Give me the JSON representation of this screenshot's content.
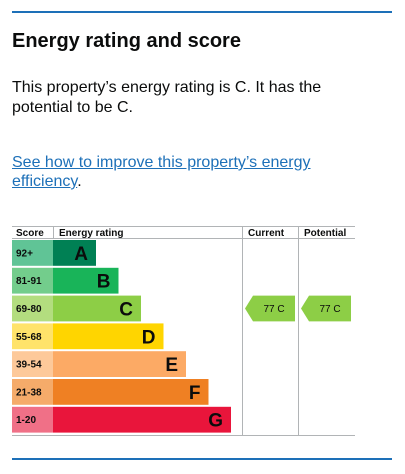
{
  "page": {
    "title": "Energy rating and score",
    "summary": "This property’s energy rating is C. It has the potential to be C.",
    "link_text": "See how to improve this property’s energy efficiency",
    "link_suffix": "."
  },
  "chart_data": {
    "type": "bar",
    "headers": {
      "score": "Score",
      "rating": "Energy rating",
      "current": "Current",
      "potential": "Potential"
    },
    "bands": [
      {
        "range": "92+",
        "letter": "A",
        "color": "#008054",
        "label_bg": "#60c496"
      },
      {
        "range": "81-91",
        "letter": "B",
        "color": "#19b459",
        "label_bg": "#73cd8c"
      },
      {
        "range": "69-80",
        "letter": "C",
        "color": "#8dce46",
        "label_bg": "#b3dd7f"
      },
      {
        "range": "55-68",
        "letter": "D",
        "color": "#ffd500",
        "label_bg": "#ffe36a"
      },
      {
        "range": "39-54",
        "letter": "E",
        "color": "#fcaa65",
        "label_bg": "#fdc99a"
      },
      {
        "range": "21-38",
        "letter": "F",
        "color": "#ef8023",
        "label_bg": "#f5ab6a"
      },
      {
        "range": "1-20",
        "letter": "G",
        "color": "#e9153b",
        "label_bg": "#f07087"
      }
    ],
    "current": {
      "score": 77,
      "letter": "C",
      "text": "77  C",
      "color": "#8dce46"
    },
    "potential": {
      "score": 77,
      "letter": "C",
      "text": "77  C",
      "color": "#8dce46"
    }
  }
}
